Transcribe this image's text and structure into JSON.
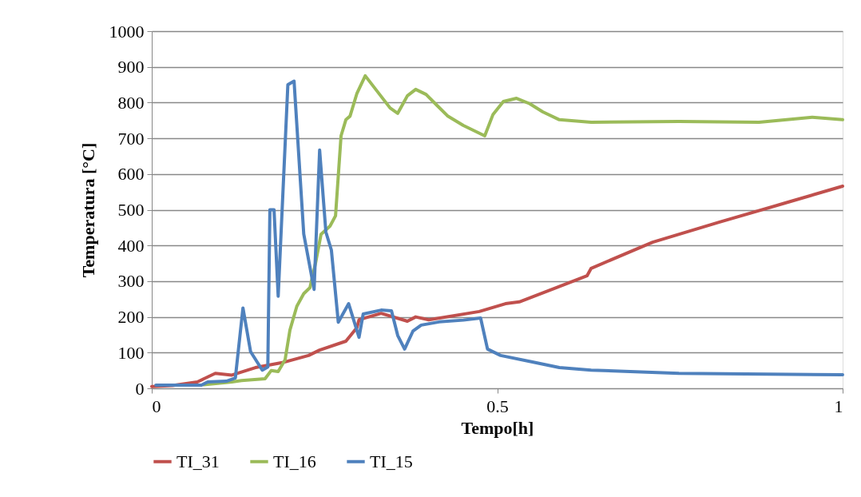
{
  "chart_data": {
    "type": "line",
    "xlabel": "Tempo[h]",
    "ylabel": "Temperatura [°C]",
    "xlim": [
      0,
      1
    ],
    "xticks": [
      0,
      0.5,
      1
    ],
    "ylim": [
      0,
      1000
    ],
    "yticks": [
      0,
      100,
      200,
      300,
      400,
      500,
      600,
      700,
      800,
      900,
      1000
    ],
    "grid": "y",
    "legend": "bottom",
    "marker": "none",
    "line_style": "solid",
    "series": [
      {
        "name": "TI_31",
        "color": "#c0504d",
        "x": [
          0,
          0.03,
          0.066,
          0.092,
          0.116,
          0.15,
          0.189,
          0.227,
          0.243,
          0.281,
          0.297,
          0.3,
          0.332,
          0.37,
          0.382,
          0.401,
          0.474,
          0.512,
          0.532,
          0.586,
          0.63,
          0.636,
          0.725,
          0.821,
          0.917,
          1.0
        ],
        "values": [
          5,
          8,
          18,
          42,
          37,
          58,
          72,
          92,
          107,
          132,
          170,
          192,
          210,
          188,
          200,
          192,
          215,
          237,
          242,
          282,
          315,
          336,
          409,
          465,
          519,
          566
        ]
      },
      {
        "name": "TI_16",
        "color": "#9bbb59",
        "x": [
          0.075,
          0.116,
          0.13,
          0.164,
          0.173,
          0.183,
          0.193,
          0.2,
          0.21,
          0.22,
          0.229,
          0.237,
          0.245,
          0.258,
          0.266,
          0.274,
          0.281,
          0.287,
          0.297,
          0.309,
          0.345,
          0.356,
          0.37,
          0.382,
          0.397,
          0.413,
          0.428,
          0.451,
          0.482,
          0.494,
          0.509,
          0.528,
          0.547,
          0.566,
          0.59,
          0.636,
          0.763,
          0.879,
          0.956,
          1.0
        ],
        "values": [
          10,
          18,
          22,
          27,
          50,
          47,
          80,
          163,
          230,
          265,
          282,
          350,
          431,
          454,
          483,
          707,
          752,
          762,
          826,
          875,
          785,
          770,
          819,
          837,
          823,
          792,
          763,
          736,
          707,
          767,
          803,
          812,
          797,
          774,
          752,
          745,
          747,
          745,
          759,
          752
        ]
      },
      {
        "name": "TI_15",
        "color": "#4f81bd",
        "x": [
          0.006,
          0.072,
          0.081,
          0.108,
          0.121,
          0.132,
          0.143,
          0.16,
          0.168,
          0.171,
          0.177,
          0.183,
          0.197,
          0.206,
          0.22,
          0.235,
          0.243,
          0.252,
          0.26,
          0.27,
          0.285,
          0.3,
          0.306,
          0.332,
          0.347,
          0.356,
          0.366,
          0.378,
          0.39,
          0.416,
          0.451,
          0.476,
          0.486,
          0.505,
          0.551,
          0.59,
          0.636,
          0.763,
          1.0
        ],
        "values": [
          9,
          9,
          18,
          20,
          29,
          225,
          103,
          51,
          60,
          500,
          500,
          258,
          850,
          860,
          432,
          277,
          667,
          438,
          387,
          185,
          237,
          143,
          208,
          219,
          217,
          148,
          110,
          160,
          177,
          186,
          191,
          197,
          110,
          92,
          74,
          58,
          51,
          42,
          38
        ]
      }
    ]
  }
}
